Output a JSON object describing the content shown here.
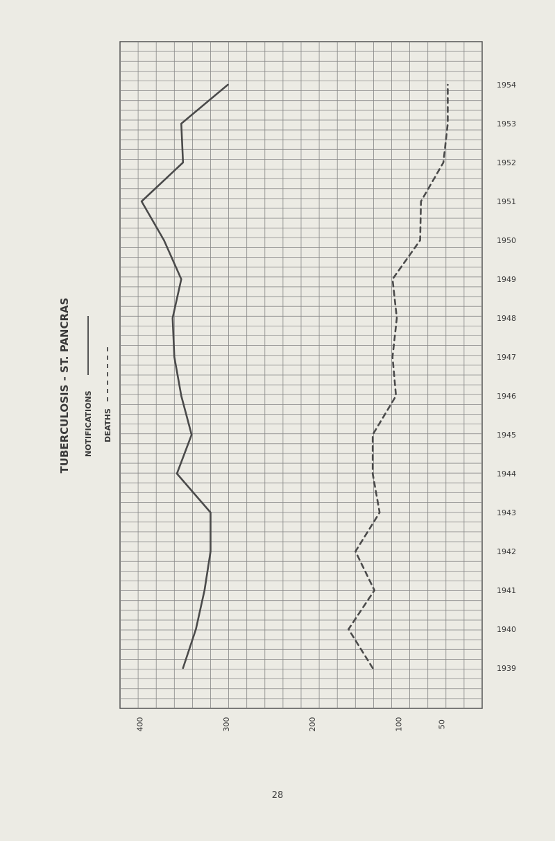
{
  "page": {
    "number": "28"
  },
  "chart_data": {
    "type": "line",
    "orientation": "rotated",
    "title": "TUBERCULOSIS - ST. PANCRAS",
    "legend": [
      {
        "label": "NOTIFICATIONS",
        "style": "solid"
      },
      {
        "label": "DEATHS",
        "style": "dashed"
      }
    ],
    "x": [
      "1939",
      "1940",
      "1941",
      "1942",
      "1943",
      "1944",
      "1945",
      "1946",
      "1947",
      "1948",
      "1949",
      "1950",
      "1951",
      "1952",
      "1953",
      "1954"
    ],
    "value_axis": {
      "ticks": [
        {
          "value": 400,
          "label": "400"
        },
        {
          "value": 300,
          "label": "300"
        },
        {
          "value": 200,
          "label": "200"
        },
        {
          "value": 100,
          "label": "100"
        },
        {
          "value": 50,
          "label": "50"
        }
      ]
    },
    "series": [
      {
        "name": "NOTIFICATIONS",
        "style": "solid",
        "values": [
          350,
          335,
          325,
          318,
          318,
          357,
          340,
          352,
          360,
          362,
          352,
          372,
          398,
          350,
          352,
          298
        ]
      },
      {
        "name": "DEATHS",
        "style": "dashed",
        "values": [
          130,
          158,
          128,
          150,
          122,
          130,
          130,
          103,
          107,
          102,
          107,
          75,
          74,
          48,
          43,
          43
        ]
      }
    ],
    "grid": true
  }
}
